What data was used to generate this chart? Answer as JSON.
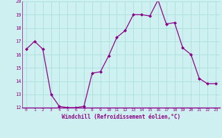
{
  "hours": [
    0,
    1,
    2,
    3,
    4,
    5,
    6,
    7,
    8,
    9,
    10,
    11,
    12,
    13,
    14,
    15,
    16,
    17,
    18,
    19,
    20,
    21,
    22,
    23
  ],
  "values": [
    16.4,
    17.0,
    16.4,
    13.0,
    12.1,
    12.0,
    12.0,
    12.1,
    14.6,
    14.7,
    15.9,
    17.3,
    17.8,
    19.0,
    19.0,
    18.9,
    20.1,
    18.3,
    18.4,
    16.5,
    16.0,
    14.2,
    13.8,
    13.8
  ],
  "ylim": [
    12,
    20
  ],
  "yticks": [
    12,
    13,
    14,
    15,
    16,
    17,
    18,
    19,
    20
  ],
  "xlabel": "Windchill (Refroidissement éolien,°C)",
  "line_color": "#8B008B",
  "marker_color": "#8B008B",
  "bg_color": "#cff0f0",
  "grid_color": "#aadddd",
  "xlabel_color": "#8B008B",
  "tick_color": "#8B008B",
  "spine_color": "#8B008B"
}
